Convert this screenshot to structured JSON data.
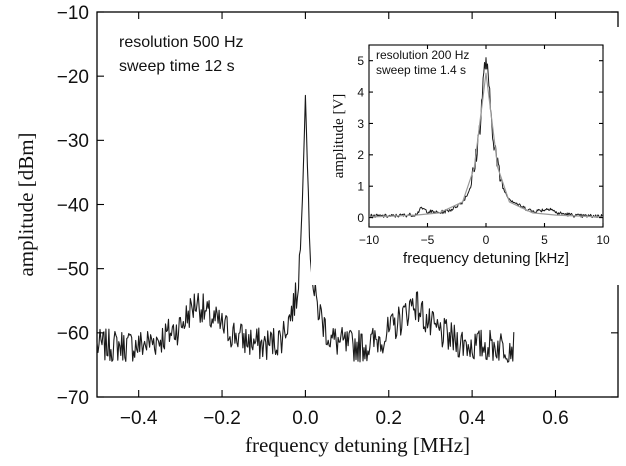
{
  "chart_data": [
    {
      "type": "line",
      "xlabel": "frequency detuning [MHz]",
      "ylabel": "amplitude [dBm]",
      "xlim": [
        -0.5,
        0.75
      ],
      "ylim": [
        -70,
        -10
      ],
      "x_ticks": [
        -0.4,
        -0.2,
        0.0,
        0.2,
        0.4,
        0.6
      ],
      "x_tick_labels": [
        "−0.4",
        "−0.2",
        "0.0",
        "0.2",
        "0.4",
        "0.6"
      ],
      "y_ticks": [
        -70,
        -60,
        -50,
        -40,
        -30,
        -20,
        -10
      ],
      "y_tick_labels": [
        "−70",
        "−60",
        "−50",
        "−40",
        "−30",
        "−20",
        "−10"
      ],
      "annotations": [
        "resolution 500 Hz",
        "sweep time 12 s"
      ],
      "grid": false,
      "series": [
        {
          "color": "#1a1a1a",
          "x": [
            -0.5,
            -0.45,
            -0.4,
            -0.35,
            -0.3,
            -0.28,
            -0.26,
            -0.24,
            -0.2,
            -0.15,
            -0.1,
            -0.06,
            -0.04,
            -0.02,
            -0.01,
            0.0,
            0.01,
            0.02,
            0.04,
            0.06,
            0.1,
            0.15,
            0.2,
            0.24,
            0.26,
            0.28,
            0.3,
            0.35,
            0.4,
            0.45,
            0.5
          ],
          "y": [
            -62,
            -62,
            -62,
            -61,
            -59,
            -57,
            -55,
            -57,
            -59,
            -61,
            -62,
            -61,
            -58,
            -54,
            -45,
            -23,
            -45,
            -54,
            -58,
            -61,
            -62,
            -62,
            -60,
            -57,
            -55,
            -57,
            -59,
            -61,
            -62,
            -62,
            -62
          ]
        }
      ]
    },
    {
      "type": "line",
      "xlabel": "frequency detuning [kHz]",
      "ylabel": "amplitude [V]",
      "xlim": [
        -10,
        10
      ],
      "ylim": [
        -0.3,
        5.5
      ],
      "x_ticks": [
        -10,
        -5,
        0,
        5,
        10
      ],
      "x_tick_labels": [
        "−10",
        "−5",
        "0",
        "5",
        "10"
      ],
      "y_ticks": [
        0,
        1,
        2,
        3,
        4,
        5
      ],
      "y_tick_labels": [
        "0",
        "1",
        "2",
        "3",
        "4",
        "5"
      ],
      "annotations": [
        "resolution 200 Hz",
        "sweep time 1.4 s"
      ],
      "grid": false,
      "series": [
        {
          "color": "#1a1a1a",
          "x": [
            -10,
            -8,
            -6,
            -5.5,
            -5,
            -4,
            -3,
            -2,
            -1.5,
            -1,
            -0.5,
            -0.2,
            0,
            0.2,
            0.5,
            1,
            1.5,
            2,
            3,
            4,
            5,
            5.5,
            6,
            8,
            10
          ],
          "y": [
            0.05,
            0.05,
            0.1,
            0.3,
            0.2,
            0.15,
            0.25,
            0.5,
            0.8,
            1.5,
            3.0,
            4.5,
            5.1,
            4.3,
            3.0,
            1.6,
            0.9,
            0.6,
            0.35,
            0.2,
            0.25,
            0.3,
            0.15,
            0.05,
            0.05
          ]
        },
        {
          "color": "#9a9a9a",
          "x": [
            -10,
            -6,
            -4,
            -2,
            -1,
            0,
            1,
            2,
            4,
            6,
            10
          ],
          "y": [
            0.02,
            0.08,
            0.15,
            0.5,
            1.6,
            4.6,
            1.6,
            0.5,
            0.15,
            0.08,
            0.02
          ]
        }
      ]
    }
  ]
}
